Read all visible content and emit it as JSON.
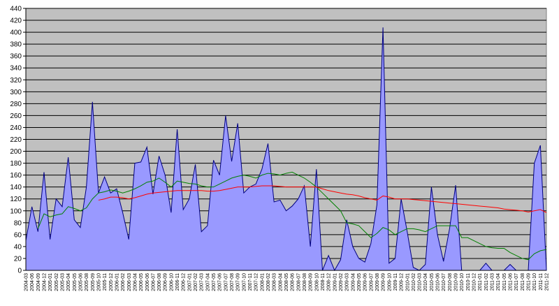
{
  "chart_data": {
    "type": "area",
    "categories": [
      "2004-03",
      "2004-06",
      "2004-09",
      "2004-12",
      "2005-01",
      "2005-02",
      "2005-03",
      "2005-04",
      "2005-05",
      "2005-06",
      "2005-08",
      "2005-09",
      "2005-10",
      "2005-11",
      "2005-12",
      "2006-01",
      "2006-02",
      "2006-03",
      "2006-04",
      "2006-05",
      "2006-06",
      "2006-07",
      "2006-08",
      "2006-09",
      "2006-10",
      "2006-11",
      "2006-12",
      "2007-01",
      "2007-02",
      "2007-03",
      "2007-04",
      "2007-05",
      "2007-06",
      "2007-07",
      "2007-08",
      "2007-09",
      "2007-10",
      "2007-11",
      "2007-12",
      "2008-01",
      "2008-02",
      "2008-03",
      "2008-04",
      "2008-05",
      "2008-06",
      "2008-07",
      "2008-08",
      "2008-09",
      "2008-10",
      "2008-11",
      "2008-12",
      "2009-01",
      "2009-02",
      "2009-03",
      "2009-04",
      "2009-05",
      "2009-06",
      "2009-07",
      "2009-08",
      "2009-09",
      "2009-10",
      "2009-11",
      "2009-12",
      "2010-01",
      "2010-02",
      "2010-03",
      "2010-04",
      "2010-05",
      "2010-06",
      "2010-07",
      "2010-08",
      "2010-09",
      "2010-10",
      "2010-11",
      "2010-12",
      "2011-01",
      "2011-02",
      "2011-03",
      "2011-04",
      "2011-05",
      "2011-06",
      "2011-07",
      "2011-08",
      "2011-09",
      "2011-10",
      "2011-11",
      "2011-12"
    ],
    "series": [
      {
        "type": "area",
        "color": "#9999ff",
        "values": [
          50,
          107,
          65,
          165,
          52,
          120,
          107,
          190,
          85,
          72,
          140,
          283,
          130,
          157,
          130,
          137,
          97,
          52,
          180,
          182,
          207,
          128,
          192,
          160,
          97,
          237,
          102,
          120,
          178,
          65,
          75,
          185,
          160,
          260,
          183,
          247,
          130,
          140,
          145,
          170,
          213,
          115,
          118,
          100,
          108,
          120,
          142,
          40,
          170,
          0,
          25,
          0,
          18,
          85,
          40,
          20,
          14,
          45,
          110,
          408,
          12,
          20,
          120,
          65,
          5,
          0,
          10,
          140,
          60,
          15,
          70,
          143,
          0,
          0,
          0,
          0,
          12,
          0,
          0,
          0,
          10,
          0,
          0,
          0,
          180,
          210,
          0
        ]
      },
      {
        "type": "line",
        "color": "#008000",
        "values": [
          null,
          null,
          70,
          95,
          90,
          93,
          95,
          107,
          104,
          100,
          105,
          120,
          130,
          132,
          135,
          133,
          130,
          133,
          137,
          142,
          148,
          150,
          155,
          148,
          140,
          150,
          148,
          146,
          145,
          142,
          140,
          140,
          145,
          150,
          155,
          158,
          160,
          158,
          155,
          160,
          163,
          162,
          160,
          163,
          165,
          160,
          155,
          148,
          140,
          130,
          120,
          110,
          100,
          80,
          78,
          75,
          65,
          55,
          62,
          72,
          68,
          60,
          65,
          70,
          70,
          68,
          65,
          70,
          75,
          75,
          75,
          75,
          55,
          55,
          50,
          45,
          40,
          38,
          37,
          37,
          30,
          25,
          20,
          18,
          28,
          33,
          35
        ]
      },
      {
        "type": "line",
        "color": "#ff0000",
        "values": [
          null,
          null,
          null,
          null,
          null,
          null,
          null,
          null,
          null,
          null,
          null,
          null,
          118,
          120,
          123,
          123,
          122,
          120,
          122,
          125,
          128,
          130,
          131,
          132,
          133,
          134,
          134,
          134,
          134,
          134,
          133,
          133,
          134,
          136,
          138,
          140,
          140,
          140,
          141,
          142,
          142,
          142,
          141,
          140,
          140,
          140,
          140,
          140,
          140,
          137,
          134,
          132,
          130,
          128,
          127,
          125,
          122,
          120,
          118,
          125,
          123,
          120,
          120,
          120,
          119,
          118,
          117,
          116,
          115,
          114,
          113,
          112,
          111,
          110,
          109,
          108,
          107,
          106,
          105,
          103,
          102,
          101,
          100,
          98,
          100,
          102,
          97
        ]
      }
    ],
    "ylim": [
      0,
      440
    ],
    "yticks": [
      0,
      20,
      40,
      60,
      80,
      100,
      120,
      140,
      160,
      180,
      200,
      220,
      240,
      260,
      280,
      300,
      320,
      340,
      360,
      380,
      400,
      420,
      440
    ],
    "grid": true,
    "plot_background": "#c0c0c0"
  }
}
